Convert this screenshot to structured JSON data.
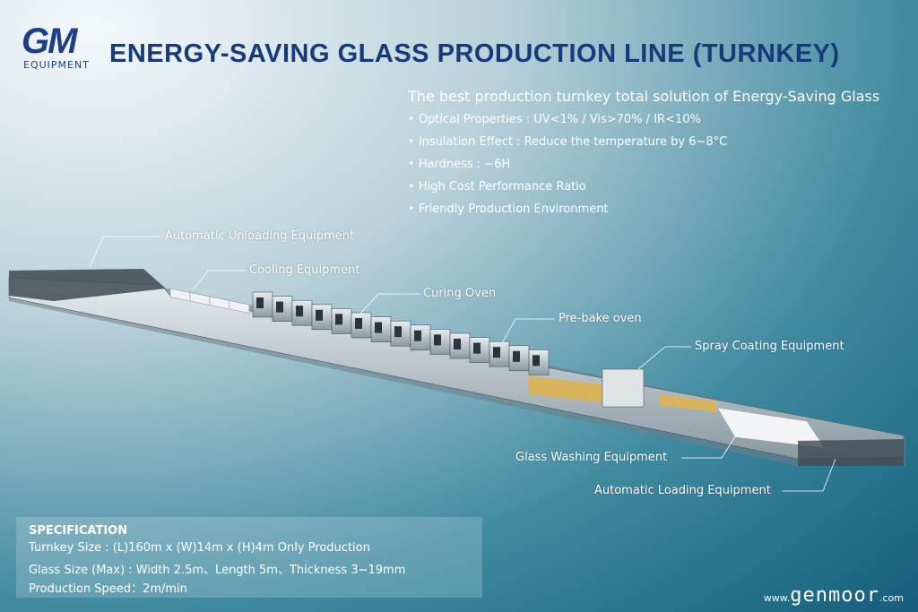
{
  "logo": {
    "mark": "GM",
    "text": "EQUIPMENT"
  },
  "header": {
    "title": "ENERGY-SAVING GLASS PRODUCTION LINE (TURNKEY)"
  },
  "features": {
    "heading": "The best production turnkey total solution of Energy-Saving Glass",
    "items": [
      "Optical Properties : UV<1% / Vis>70% / IR<10%",
      "Insulation Effect : Reduce the temperature by 6~8°C",
      "Hardness : ~6H",
      "High Cost Performance Ratio",
      "Friendly Production Environment"
    ]
  },
  "stations": [
    "Automatic Unloading Equipment",
    "Cooling Equipment",
    "Curing Oven",
    "Pre-bake oven",
    "Spray Coating Equipment",
    "Glass Washing Equipment",
    "Automatic Loading Equipment"
  ],
  "specification": {
    "heading": "SPECIFICATION",
    "lines": [
      "Turnkey Size : (L)160m x (W)14m x (H)4m  Only Production",
      "Glass Size (Max) : Width 2.5m、Length 5m、Thickness 3~19mm",
      "Production Speed：2m/min"
    ]
  },
  "website": {
    "prefix": "www.",
    "name": "genmoor",
    "suffix": ".com"
  }
}
